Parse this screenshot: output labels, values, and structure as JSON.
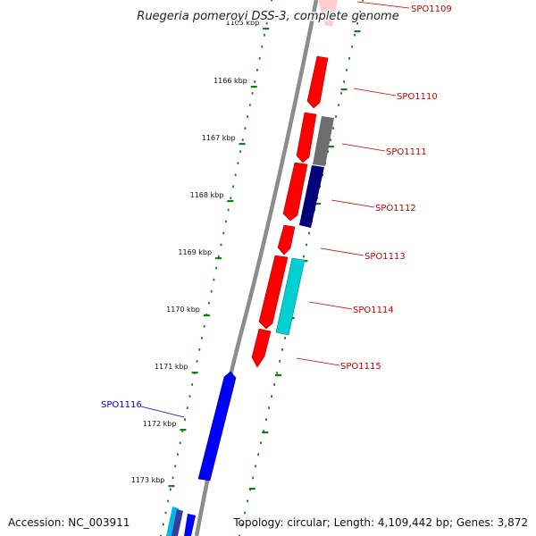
{
  "title": "Ruegeria pomeroyi DSS-3, complete genome",
  "footer": {
    "accession": "Accession: NC_003911",
    "summary": "Topology: circular; Length: 4,109,442 bp; Genes: 3,872"
  },
  "scale": {
    "unit": "kbp",
    "ticks": [
      "1165 kbp",
      "1166 kbp",
      "1167 kbp",
      "1168 kbp",
      "1169 kbp",
      "1170 kbp",
      "1171 kbp",
      "1172 kbp",
      "1173 kbp"
    ]
  },
  "genes": [
    {
      "name": "SPO1109",
      "color": "#ff0000",
      "label_color": "#cc0000"
    },
    {
      "name": "SPO1110",
      "color": "#ff0000",
      "label_color": "#cc0000"
    },
    {
      "name": "SPO1111",
      "color": "#ff0000",
      "label_color": "#cc0000"
    },
    {
      "name": "SPO1112",
      "color": "#ff0000",
      "label_color": "#cc0000"
    },
    {
      "name": "SPO1113",
      "color": "#ff0000",
      "label_color": "#cc0000"
    },
    {
      "name": "SPO1114",
      "color": "#ff0000",
      "label_color": "#cc0000"
    },
    {
      "name": "SPO1115",
      "color": "#ff0000",
      "label_color": "#cc0000"
    },
    {
      "name": "SPO1116",
      "color": "#0000ff",
      "label_color": "#0000cc"
    }
  ],
  "colors": {
    "backbone": "#8c8c8c",
    "forward_gene": "#ff0000",
    "reverse_gene": "#0000ff",
    "cog_gray": "#6e6e6e",
    "cog_navy": "#00007a",
    "cog_cyan": "#00d0d0",
    "tick": "#1a7a1a"
  }
}
